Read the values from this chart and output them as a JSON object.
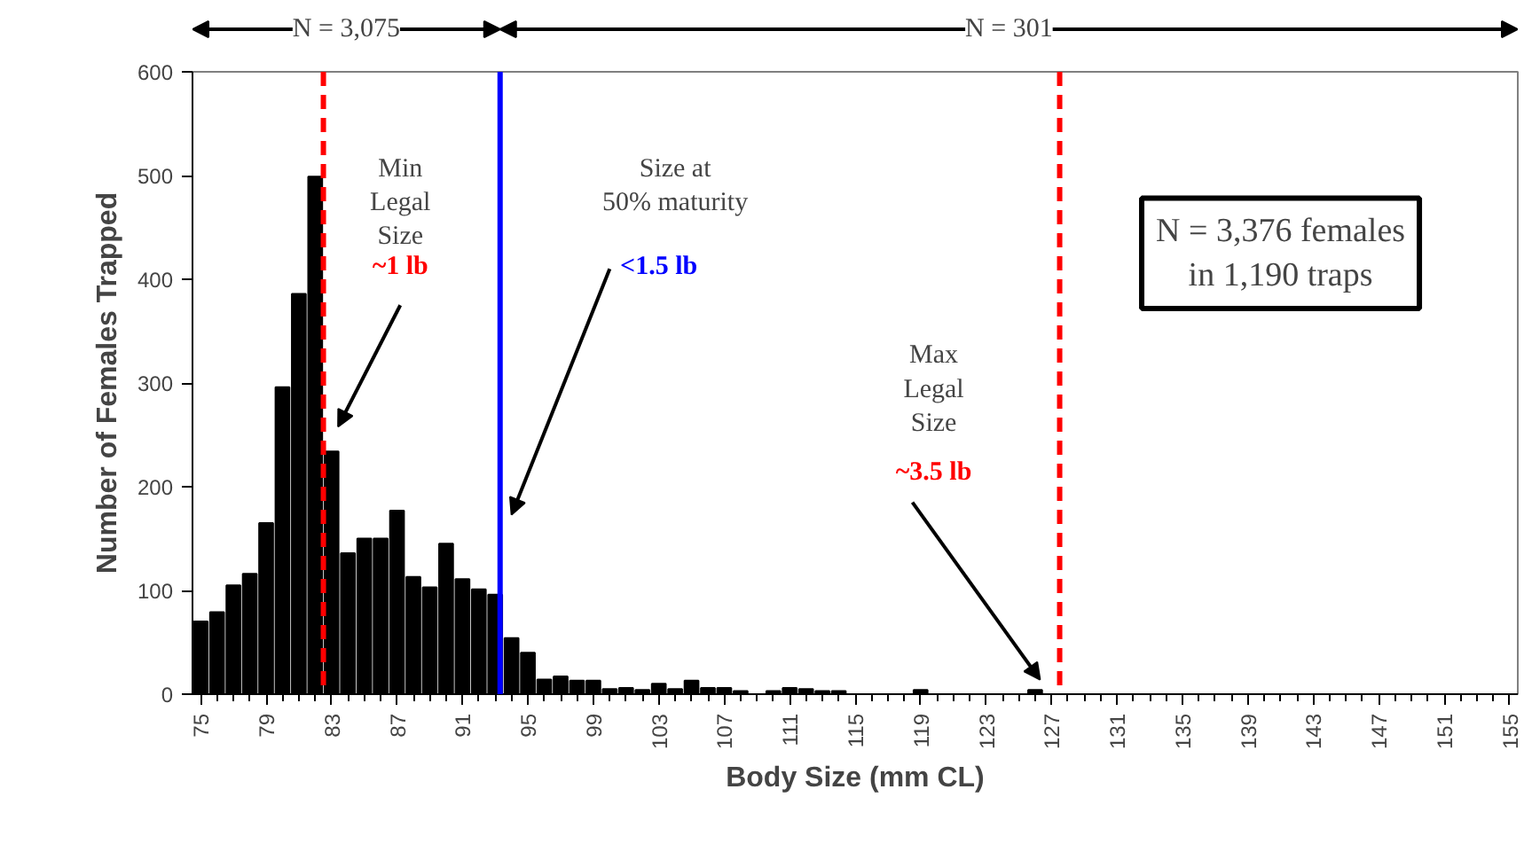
{
  "chart_data": {
    "type": "bar",
    "xlabel": "Body Size (mm CL)",
    "ylabel": "Number of Females Trapped",
    "x": [
      75,
      76,
      77,
      78,
      79,
      80,
      81,
      82,
      83,
      84,
      85,
      86,
      87,
      88,
      89,
      90,
      91,
      92,
      93,
      94,
      95,
      96,
      97,
      98,
      99,
      100,
      101,
      102,
      103,
      104,
      105,
      106,
      107,
      108,
      109,
      110,
      111,
      112,
      113,
      114,
      115,
      116,
      117,
      118,
      119,
      120,
      121,
      122,
      123,
      124,
      125,
      126,
      127,
      128,
      129,
      130,
      131,
      132,
      133,
      134,
      135,
      136,
      137,
      138,
      139,
      140,
      141,
      142,
      143,
      144,
      145,
      146,
      147,
      148,
      149,
      150,
      151,
      152,
      153,
      154,
      155
    ],
    "values": [
      70,
      79,
      105,
      116,
      165,
      296,
      386,
      499,
      234,
      136,
      150,
      150,
      177,
      113,
      103,
      145,
      111,
      101,
      96,
      54,
      40,
      14,
      17,
      13,
      13,
      5,
      6,
      4,
      10,
      5,
      13,
      6,
      6,
      3,
      0,
      3,
      6,
      5,
      3,
      3,
      0,
      0,
      0,
      0,
      4,
      0,
      0,
      0,
      0,
      0,
      0,
      4,
      0,
      0,
      0,
      0,
      0,
      0,
      0,
      0,
      0,
      0,
      0,
      0,
      0,
      0,
      0,
      0,
      0,
      0,
      0,
      0,
      0,
      0,
      0,
      0,
      0,
      0,
      0,
      0,
      0
    ],
    "color": "#000000",
    "xlim": [
      74.5,
      155.5
    ],
    "ylim": [
      0,
      600
    ],
    "xticks": [
      75,
      79,
      83,
      87,
      91,
      95,
      99,
      103,
      107,
      111,
      115,
      119,
      123,
      127,
      131,
      135,
      139,
      143,
      147,
      151,
      155
    ],
    "yticks": [
      0,
      100,
      200,
      300,
      400,
      500,
      600
    ],
    "grid": false,
    "ref_lines": [
      {
        "axis": "x",
        "value": 82.5,
        "label": "~1 lb",
        "color": "#ff0000",
        "line_style": "dashed"
      },
      {
        "axis": "x",
        "value": 93.3,
        "label": "<1.5 lb",
        "color": "#0000ff",
        "line_style": "solid"
      },
      {
        "axis": "x",
        "value": 127.5,
        "label": "~3.5 lb",
        "color": "#ff0000",
        "line_style": "dashed"
      }
    ],
    "annotations": [
      "N = 3,075",
      "N = 301",
      "Min\nLegal\nSize",
      "Size at\n50% maturity",
      "Max\nLegal\nSize",
      "N = 3,376 females\nin 1,190 traps"
    ]
  }
}
